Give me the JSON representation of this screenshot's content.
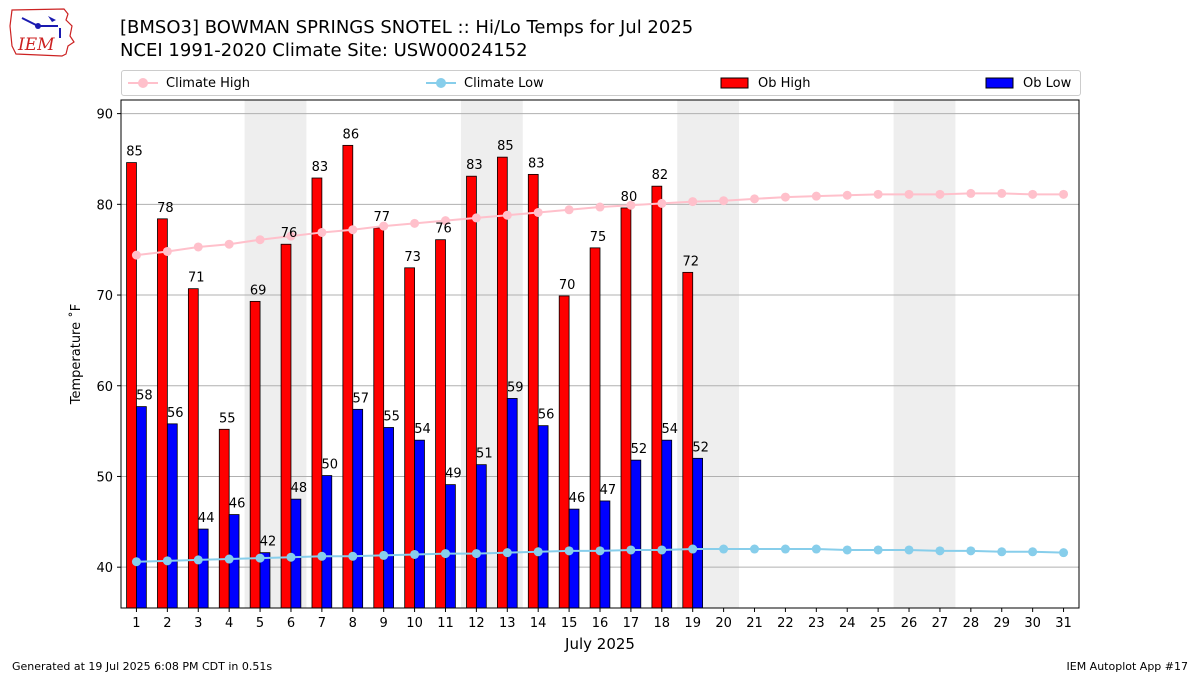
{
  "header": {
    "title_line1": "[BMSO3] BOWMAN SPRINGS SNOTEL :: Hi/Lo Temps for Jul 2025",
    "title_line2": "NCEI 1991-2020 Climate Site: USW00024152",
    "logo_text": "IEM"
  },
  "footer": {
    "left": "Generated at 19 Jul 2025 6:08 PM CDT in 0.51s",
    "right": "IEM Autoplot App #17"
  },
  "colors": {
    "ob_high": "#ff0000",
    "ob_low": "#0000ff",
    "climate_high": "#ffc0cb",
    "climate_low": "#87ceeb",
    "weekend_shade": "#eeeeee",
    "grid": "#b0b0b0"
  },
  "chart_data": {
    "type": "bar",
    "xlabel": "July 2025",
    "ylabel": "Temperature ˚F",
    "ylim": [
      35.5,
      91.5
    ],
    "yticks": [
      40,
      50,
      60,
      70,
      80,
      90
    ],
    "grid": "horizontal",
    "legend_position": "top",
    "legend": [
      "Climate High",
      "Climate Low",
      "Ob High",
      "Ob Low"
    ],
    "days": [
      1,
      2,
      3,
      4,
      5,
      6,
      7,
      8,
      9,
      10,
      11,
      12,
      13,
      14,
      15,
      16,
      17,
      18,
      19,
      20,
      21,
      22,
      23,
      24,
      25,
      26,
      27,
      28,
      29,
      30,
      31
    ],
    "shaded_weekend_days": [
      [
        5,
        6
      ],
      [
        12,
        13
      ],
      [
        19,
        20
      ],
      [
        26,
        27
      ]
    ],
    "series": [
      {
        "name": "Ob High",
        "kind": "bar",
        "values": [
          84.6,
          78.4,
          70.7,
          55.2,
          69.3,
          75.6,
          82.9,
          86.5,
          77.4,
          73.0,
          76.1,
          83.1,
          85.2,
          83.3,
          69.9,
          75.2,
          79.6,
          82.0,
          72.5
        ],
        "labels": [
          "85",
          "78",
          "71",
          "55",
          "69",
          "76",
          "83",
          "86",
          "77",
          "73",
          "76",
          "83",
          "85",
          "83",
          "70",
          "75",
          "80",
          "82",
          "72"
        ]
      },
      {
        "name": "Ob Low",
        "kind": "bar",
        "values": [
          57.7,
          55.8,
          44.2,
          45.8,
          41.6,
          47.5,
          50.1,
          57.4,
          55.4,
          54.0,
          49.1,
          51.3,
          58.6,
          55.6,
          46.4,
          47.3,
          51.8,
          54.0,
          52.0
        ],
        "labels": [
          "58",
          "56",
          "44",
          "46",
          "42",
          "48",
          "50",
          "57",
          "55",
          "54",
          "49",
          "51",
          "59",
          "56",
          "46",
          "47",
          "52",
          "54",
          "52"
        ]
      },
      {
        "name": "Climate High",
        "kind": "line",
        "values": [
          74.4,
          74.8,
          75.3,
          75.6,
          76.1,
          76.5,
          76.9,
          77.2,
          77.6,
          77.9,
          78.2,
          78.5,
          78.8,
          79.1,
          79.4,
          79.7,
          79.9,
          80.1,
          80.3,
          80.4,
          80.6,
          80.8,
          80.9,
          81.0,
          81.1,
          81.1,
          81.1,
          81.2,
          81.2,
          81.1,
          81.1
        ]
      },
      {
        "name": "Climate Low",
        "kind": "line",
        "values": [
          40.6,
          40.7,
          40.8,
          40.9,
          41.0,
          41.1,
          41.2,
          41.2,
          41.3,
          41.4,
          41.5,
          41.5,
          41.6,
          41.7,
          41.8,
          41.8,
          41.9,
          41.9,
          42.0,
          42.0,
          42.0,
          42.0,
          42.0,
          41.9,
          41.9,
          41.9,
          41.8,
          41.8,
          41.7,
          41.7,
          41.6
        ]
      }
    ]
  }
}
